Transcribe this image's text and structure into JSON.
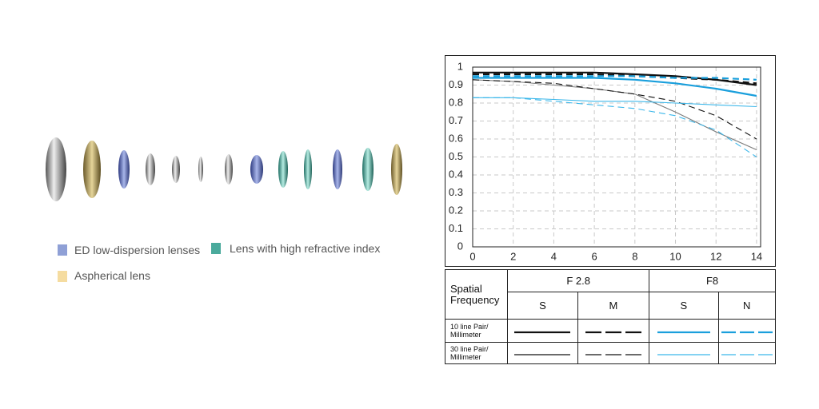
{
  "chart_data": {
    "type": "line",
    "x": [
      0,
      2,
      4,
      6,
      8,
      10,
      12,
      14
    ],
    "xlim": [
      0,
      14.2
    ],
    "ylim": [
      0,
      1
    ],
    "xticks": [
      0,
      2,
      4,
      6,
      8,
      10,
      12,
      14
    ],
    "yticks": [
      0,
      0.1,
      0.2,
      0.3,
      0.4,
      0.5,
      0.6,
      0.7,
      0.8,
      0.9,
      1
    ],
    "grid": true,
    "series": [
      {
        "color": "#111111",
        "weight": "thick",
        "dash": false,
        "values": [
          0.97,
          0.97,
          0.97,
          0.97,
          0.96,
          0.95,
          0.93,
          0.9
        ]
      },
      {
        "color": "#111111",
        "weight": "thick",
        "dash": true,
        "values": [
          0.96,
          0.96,
          0.96,
          0.96,
          0.95,
          0.94,
          0.93,
          0.91
        ]
      },
      {
        "color": "#1a9fdc",
        "weight": "thick",
        "dash": false,
        "values": [
          0.94,
          0.94,
          0.94,
          0.94,
          0.93,
          0.91,
          0.88,
          0.84
        ]
      },
      {
        "color": "#1a9fdc",
        "weight": "thick",
        "dash": true,
        "values": [
          0.95,
          0.95,
          0.95,
          0.95,
          0.95,
          0.94,
          0.94,
          0.93
        ]
      },
      {
        "color": "#7a7a7a",
        "weight": "thin",
        "dash": false,
        "values": [
          0.93,
          0.92,
          0.9,
          0.88,
          0.85,
          0.75,
          0.64,
          0.54
        ]
      },
      {
        "color": "#111111",
        "weight": "thin",
        "dash": true,
        "values": [
          0.93,
          0.92,
          0.91,
          0.88,
          0.85,
          0.81,
          0.73,
          0.6
        ]
      },
      {
        "color": "#3bb7ea",
        "weight": "thin",
        "dash": false,
        "values": [
          0.83,
          0.83,
          0.82,
          0.81,
          0.81,
          0.8,
          0.79,
          0.78
        ]
      },
      {
        "color": "#3bb7ea",
        "weight": "thin",
        "dash": true,
        "values": [
          0.83,
          0.83,
          0.81,
          0.79,
          0.77,
          0.73,
          0.65,
          0.5
        ]
      }
    ]
  },
  "spec_table": {
    "corner": "Spatial Frequency",
    "apertures": [
      "F 2.8",
      "F8"
    ],
    "columns": [
      "S",
      "M",
      "S",
      "N"
    ],
    "rows": [
      "10 line Pair/ Millimeter",
      "30 line Pair/ Millimeter"
    ]
  },
  "lens_legend": {
    "items": [
      {
        "label": "ED low-dispersion lenses",
        "color": "#8fa0d6"
      },
      {
        "label": "Lens with high refractive index",
        "color": "#4aaa9c"
      },
      {
        "label": "Aspherical lens",
        "color": "#f5dca0"
      }
    ]
  }
}
